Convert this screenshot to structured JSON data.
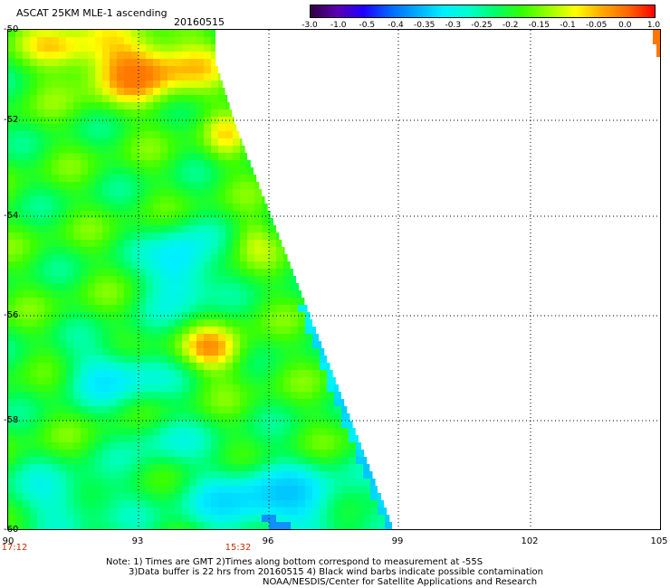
{
  "header": {
    "title": "ASCAT 25KM MLE-1 ascending",
    "date": "20160515"
  },
  "colorbar": {
    "labels": [
      "-3.0",
      "-1.0",
      "-0.5",
      "-0.4",
      "-0.35",
      "-0.3",
      "-0.25",
      "-0.2",
      "-0.15",
      "-0.1",
      "-0.05",
      "0.0",
      "1.0"
    ],
    "colors": [
      "#300040",
      "#5a00b0",
      "#2000ff",
      "#0066ff",
      "#00aaff",
      "#00eeff",
      "#00ffcc",
      "#00ff66",
      "#33ff00",
      "#99ff00",
      "#ffff00",
      "#ffaa00",
      "#ff6600",
      "#ff0000"
    ]
  },
  "map": {
    "lat_labels": [
      "-50",
      "-52",
      "-54",
      "-56",
      "-58",
      "-60"
    ],
    "lon_labels": [
      "90",
      "93",
      "96",
      "99",
      "102",
      "105"
    ],
    "time_labels": [
      "17:12",
      "15:32"
    ]
  },
  "notes": {
    "line1": "Note: 1) Times are GMT 2)Times along bottom correspond to measurement at -55S",
    "line2": "3)Data buffer is 22 hrs from 20160515 4) Black wind barbs indicate possible contamination",
    "line3": "NOAA/NESDIS/Center for Satellite Applications and Research"
  }
}
